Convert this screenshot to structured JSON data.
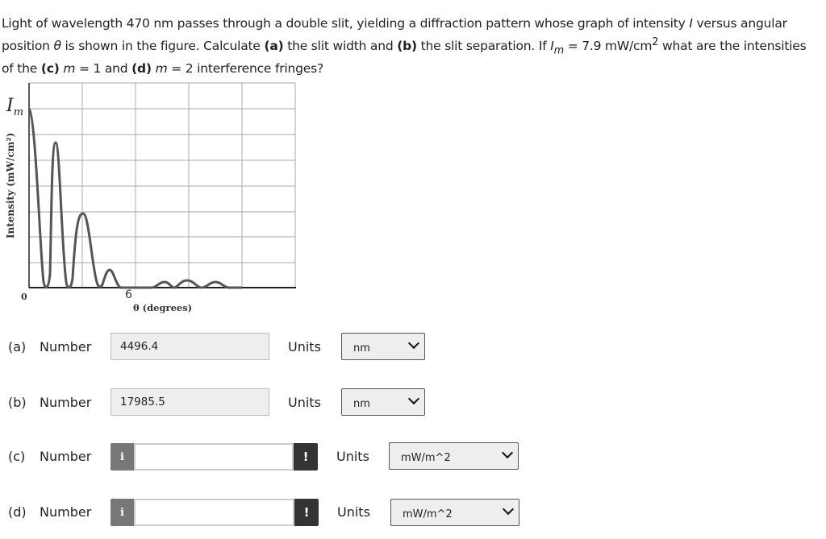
{
  "question": {
    "p1": "Light of wavelength 470 nm passes through a double slit, yielding a diffraction pattern whose graph of intensity ",
    "I": "I",
    "p2": " versus angular position ",
    "theta": "θ",
    "p3": " is shown in the figure. Calculate ",
    "a": "(a)",
    "p4": " the slit width and ",
    "b": "(b)",
    "p5": " the slit separation. If ",
    "Im": "I",
    "Im_sub": "m",
    "p6": " = 7.9 mW/cm",
    "sup": "2",
    "p7": " what are the intensities of the ",
    "c": "(c)",
    "m1": "m",
    "p8": " = 1 and ",
    "d": "(d)",
    "m2": "m",
    "p9": " = 2 interference fringes?"
  },
  "figure": {
    "y_top_label": "I",
    "y_top_sub": "m",
    "y_axis_label": "Intensity (mW/cm²)",
    "origin_label": "0",
    "x_tick": "6",
    "x_axis_label": "θ (degrees)"
  },
  "answers": [
    {
      "part": "(a)",
      "label": "Number",
      "value": "4496.4",
      "units_label": "Units",
      "unit": "nm"
    },
    {
      "part": "(b)",
      "label": "Number",
      "value": "17985.5",
      "units_label": "Units",
      "unit": "nm"
    },
    {
      "part": "(c)",
      "label": "Number",
      "value": "",
      "units_label": "Units",
      "unit": "mW/m^2",
      "info": "i",
      "warn": "!"
    },
    {
      "part": "(d)",
      "label": "Number",
      "value": "",
      "units_label": "Units",
      "unit": "mW/m^2",
      "info": "i",
      "warn": "!"
    }
  ]
}
